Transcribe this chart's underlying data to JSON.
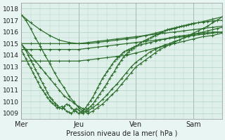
{
  "background_color": "#e8f5f2",
  "plot_bg_color": "#dff0ea",
  "grid_color": "#afd4c4",
  "line_color": "#2d6e2d",
  "xlabel": "Pression niveau de la mer( hPa )",
  "ylim": [
    1008.5,
    1018.5
  ],
  "yticks": [
    1009,
    1010,
    1011,
    1012,
    1013,
    1014,
    1015,
    1016,
    1017,
    1018
  ],
  "xlim": [
    0,
    168
  ],
  "day_positions": [
    0,
    48,
    96,
    144
  ],
  "day_labels": [
    "Mer",
    "Jeu",
    "Ven",
    "Sam"
  ],
  "series": {
    "flat_top": [
      [
        0,
        1017.5
      ],
      [
        8,
        1016.8
      ],
      [
        16,
        1016.2
      ],
      [
        24,
        1015.7
      ],
      [
        32,
        1015.3
      ],
      [
        40,
        1015.1
      ],
      [
        48,
        1015.0
      ],
      [
        56,
        1015.0
      ],
      [
        64,
        1015.1
      ],
      [
        72,
        1015.2
      ],
      [
        80,
        1015.3
      ],
      [
        88,
        1015.4
      ],
      [
        96,
        1015.5
      ],
      [
        104,
        1015.7
      ],
      [
        112,
        1015.9
      ],
      [
        120,
        1016.1
      ],
      [
        128,
        1016.3
      ],
      [
        136,
        1016.5
      ],
      [
        144,
        1016.7
      ],
      [
        152,
        1016.9
      ],
      [
        160,
        1017.1
      ],
      [
        168,
        1017.3
      ]
    ],
    "flat2": [
      [
        0,
        1015.0
      ],
      [
        8,
        1015.0
      ],
      [
        16,
        1015.0
      ],
      [
        24,
        1015.0
      ],
      [
        32,
        1015.0
      ],
      [
        40,
        1015.0
      ],
      [
        48,
        1015.0
      ],
      [
        56,
        1015.1
      ],
      [
        64,
        1015.2
      ],
      [
        72,
        1015.3
      ],
      [
        80,
        1015.4
      ],
      [
        88,
        1015.5
      ],
      [
        96,
        1015.6
      ],
      [
        104,
        1015.7
      ],
      [
        112,
        1015.8
      ],
      [
        120,
        1015.9
      ],
      [
        128,
        1016.0
      ],
      [
        136,
        1016.1
      ],
      [
        144,
        1016.2
      ],
      [
        152,
        1016.3
      ],
      [
        160,
        1016.4
      ],
      [
        168,
        1016.5
      ]
    ],
    "flat3": [
      [
        0,
        1014.5
      ],
      [
        8,
        1014.5
      ],
      [
        16,
        1014.5
      ],
      [
        24,
        1014.5
      ],
      [
        32,
        1014.5
      ],
      [
        40,
        1014.5
      ],
      [
        48,
        1014.5
      ],
      [
        56,
        1014.6
      ],
      [
        64,
        1014.7
      ],
      [
        72,
        1014.8
      ],
      [
        80,
        1014.9
      ],
      [
        88,
        1015.0
      ],
      [
        96,
        1015.1
      ],
      [
        104,
        1015.2
      ],
      [
        112,
        1015.3
      ],
      [
        120,
        1015.4
      ],
      [
        128,
        1015.5
      ],
      [
        136,
        1015.6
      ],
      [
        144,
        1015.7
      ],
      [
        152,
        1015.8
      ],
      [
        160,
        1015.9
      ],
      [
        168,
        1016.0
      ]
    ],
    "flat4": [
      [
        0,
        1013.5
      ],
      [
        8,
        1013.5
      ],
      [
        16,
        1013.5
      ],
      [
        24,
        1013.5
      ],
      [
        32,
        1013.5
      ],
      [
        40,
        1013.5
      ],
      [
        48,
        1013.5
      ],
      [
        56,
        1013.6
      ],
      [
        64,
        1013.7
      ],
      [
        72,
        1013.8
      ],
      [
        80,
        1013.9
      ],
      [
        88,
        1014.0
      ],
      [
        96,
        1014.2
      ],
      [
        104,
        1014.4
      ],
      [
        112,
        1014.6
      ],
      [
        120,
        1014.8
      ],
      [
        128,
        1015.0
      ],
      [
        136,
        1015.2
      ],
      [
        144,
        1015.4
      ],
      [
        152,
        1015.6
      ],
      [
        160,
        1015.7
      ],
      [
        168,
        1015.9
      ]
    ],
    "dip1": [
      [
        0,
        1017.5
      ],
      [
        4,
        1017.0
      ],
      [
        8,
        1016.3
      ],
      [
        12,
        1015.5
      ],
      [
        16,
        1014.8
      ],
      [
        20,
        1014.0
      ],
      [
        24,
        1013.3
      ],
      [
        28,
        1012.5
      ],
      [
        32,
        1011.8
      ],
      [
        36,
        1011.2
      ],
      [
        40,
        1010.5
      ],
      [
        44,
        1010.0
      ],
      [
        48,
        1009.5
      ],
      [
        52,
        1009.2
      ],
      [
        56,
        1009.0
      ],
      [
        60,
        1009.2
      ],
      [
        64,
        1009.5
      ],
      [
        68,
        1009.8
      ],
      [
        72,
        1010.2
      ],
      [
        76,
        1010.6
      ],
      [
        80,
        1011.0
      ],
      [
        84,
        1011.5
      ],
      [
        88,
        1012.0
      ],
      [
        92,
        1012.5
      ],
      [
        96,
        1013.0
      ],
      [
        100,
        1013.3
      ],
      [
        104,
        1013.6
      ],
      [
        108,
        1013.9
      ],
      [
        112,
        1014.2
      ],
      [
        116,
        1014.5
      ],
      [
        120,
        1014.7
      ],
      [
        124,
        1014.9
      ],
      [
        128,
        1015.1
      ],
      [
        132,
        1015.3
      ],
      [
        136,
        1015.5
      ],
      [
        140,
        1015.7
      ],
      [
        144,
        1015.9
      ],
      [
        148,
        1016.1
      ],
      [
        152,
        1016.3
      ],
      [
        156,
        1016.5
      ],
      [
        160,
        1016.8
      ],
      [
        164,
        1017.0
      ],
      [
        168,
        1017.3
      ]
    ],
    "dip2": [
      [
        0,
        1015.0
      ],
      [
        4,
        1014.5
      ],
      [
        8,
        1014.0
      ],
      [
        12,
        1013.5
      ],
      [
        16,
        1013.0
      ],
      [
        20,
        1012.5
      ],
      [
        24,
        1012.0
      ],
      [
        28,
        1011.5
      ],
      [
        32,
        1011.0
      ],
      [
        36,
        1010.5
      ],
      [
        40,
        1010.2
      ],
      [
        44,
        1009.9
      ],
      [
        48,
        1009.6
      ],
      [
        52,
        1009.4
      ],
      [
        56,
        1009.2
      ],
      [
        60,
        1009.5
      ],
      [
        64,
        1009.8
      ],
      [
        68,
        1010.2
      ],
      [
        72,
        1010.6
      ],
      [
        76,
        1011.1
      ],
      [
        80,
        1011.5
      ],
      [
        84,
        1012.0
      ],
      [
        88,
        1012.5
      ],
      [
        92,
        1013.0
      ],
      [
        96,
        1013.4
      ],
      [
        100,
        1013.7
      ],
      [
        104,
        1014.0
      ],
      [
        108,
        1014.3
      ],
      [
        112,
        1014.5
      ],
      [
        116,
        1014.7
      ],
      [
        120,
        1014.9
      ],
      [
        124,
        1015.0
      ],
      [
        128,
        1015.2
      ],
      [
        132,
        1015.3
      ],
      [
        136,
        1015.5
      ],
      [
        140,
        1015.6
      ],
      [
        144,
        1015.8
      ],
      [
        148,
        1015.9
      ],
      [
        152,
        1016.0
      ],
      [
        156,
        1016.1
      ],
      [
        160,
        1016.2
      ],
      [
        164,
        1016.3
      ],
      [
        168,
        1016.4
      ]
    ],
    "dip3_detailed": [
      [
        0,
        1015.0
      ],
      [
        2,
        1014.7
      ],
      [
        4,
        1014.4
      ],
      [
        6,
        1014.0
      ],
      [
        8,
        1013.6
      ],
      [
        10,
        1013.2
      ],
      [
        12,
        1012.8
      ],
      [
        14,
        1012.4
      ],
      [
        16,
        1012.0
      ],
      [
        18,
        1011.6
      ],
      [
        20,
        1011.2
      ],
      [
        22,
        1010.8
      ],
      [
        24,
        1010.4
      ],
      [
        26,
        1010.2
      ],
      [
        28,
        1009.9
      ],
      [
        30,
        1009.7
      ],
      [
        32,
        1009.5
      ],
      [
        34,
        1009.6
      ],
      [
        36,
        1009.4
      ],
      [
        38,
        1009.2
      ],
      [
        40,
        1009.1
      ],
      [
        42,
        1009.0
      ],
      [
        44,
        1009.2
      ],
      [
        46,
        1009.4
      ],
      [
        48,
        1009.3
      ],
      [
        50,
        1009.1
      ],
      [
        52,
        1009.0
      ],
      [
        54,
        1009.2
      ],
      [
        56,
        1009.4
      ],
      [
        58,
        1009.6
      ],
      [
        60,
        1009.8
      ],
      [
        62,
        1010.1
      ],
      [
        64,
        1010.4
      ],
      [
        66,
        1010.7
      ],
      [
        68,
        1011.0
      ],
      [
        70,
        1011.3
      ],
      [
        72,
        1011.6
      ],
      [
        74,
        1012.0
      ],
      [
        76,
        1012.3
      ],
      [
        78,
        1012.6
      ],
      [
        80,
        1013.0
      ],
      [
        82,
        1013.3
      ],
      [
        84,
        1013.6
      ],
      [
        86,
        1013.9
      ],
      [
        88,
        1014.1
      ],
      [
        90,
        1014.3
      ],
      [
        92,
        1014.5
      ],
      [
        94,
        1014.6
      ],
      [
        96,
        1014.8
      ],
      [
        98,
        1014.9
      ],
      [
        100,
        1015.1
      ],
      [
        102,
        1015.2
      ],
      [
        104,
        1015.3
      ],
      [
        106,
        1015.4
      ],
      [
        108,
        1015.5
      ],
      [
        110,
        1015.6
      ],
      [
        112,
        1015.7
      ],
      [
        114,
        1015.8
      ],
      [
        116,
        1015.9
      ],
      [
        118,
        1016.0
      ],
      [
        120,
        1016.1
      ],
      [
        122,
        1016.2
      ],
      [
        124,
        1016.25
      ],
      [
        126,
        1016.3
      ],
      [
        128,
        1016.35
      ],
      [
        130,
        1016.4
      ],
      [
        132,
        1016.45
      ],
      [
        134,
        1016.5
      ],
      [
        136,
        1016.55
      ],
      [
        138,
        1016.6
      ],
      [
        140,
        1016.65
      ],
      [
        142,
        1016.7
      ],
      [
        144,
        1016.75
      ],
      [
        148,
        1016.8
      ],
      [
        152,
        1016.85
      ],
      [
        156,
        1016.9
      ],
      [
        160,
        1016.95
      ],
      [
        164,
        1017.0
      ],
      [
        168,
        1017.0
      ]
    ],
    "dip4_zigzag": [
      [
        0,
        1014.5
      ],
      [
        2,
        1014.1
      ],
      [
        4,
        1013.7
      ],
      [
        6,
        1013.3
      ],
      [
        8,
        1012.9
      ],
      [
        10,
        1012.5
      ],
      [
        12,
        1012.1
      ],
      [
        14,
        1011.7
      ],
      [
        16,
        1011.3
      ],
      [
        18,
        1011.0
      ],
      [
        20,
        1010.7
      ],
      [
        22,
        1010.4
      ],
      [
        24,
        1010.1
      ],
      [
        26,
        1009.9
      ],
      [
        28,
        1009.7
      ],
      [
        30,
        1009.5
      ],
      [
        32,
        1009.5
      ],
      [
        34,
        1009.4
      ],
      [
        36,
        1009.6
      ],
      [
        38,
        1009.8
      ],
      [
        40,
        1009.7
      ],
      [
        42,
        1009.5
      ],
      [
        44,
        1009.3
      ],
      [
        46,
        1009.2
      ],
      [
        48,
        1009.0
      ],
      [
        50,
        1009.1
      ],
      [
        52,
        1009.3
      ],
      [
        54,
        1009.5
      ],
      [
        56,
        1009.8
      ],
      [
        58,
        1010.1
      ],
      [
        60,
        1010.4
      ],
      [
        62,
        1010.8
      ],
      [
        64,
        1011.2
      ],
      [
        66,
        1011.6
      ],
      [
        68,
        1012.0
      ],
      [
        70,
        1012.3
      ],
      [
        72,
        1012.6
      ],
      [
        74,
        1012.9
      ],
      [
        76,
        1013.2
      ],
      [
        78,
        1013.5
      ],
      [
        80,
        1013.7
      ],
      [
        82,
        1013.9
      ],
      [
        84,
        1014.1
      ],
      [
        86,
        1014.3
      ],
      [
        88,
        1014.4
      ],
      [
        90,
        1014.5
      ],
      [
        92,
        1014.6
      ],
      [
        94,
        1014.7
      ],
      [
        96,
        1014.8
      ],
      [
        100,
        1014.9
      ],
      [
        104,
        1015.0
      ],
      [
        108,
        1015.1
      ],
      [
        112,
        1015.2
      ],
      [
        116,
        1015.3
      ],
      [
        120,
        1015.4
      ],
      [
        124,
        1015.5
      ],
      [
        128,
        1015.6
      ],
      [
        132,
        1015.65
      ],
      [
        136,
        1015.7
      ],
      [
        140,
        1015.75
      ],
      [
        144,
        1015.8
      ],
      [
        148,
        1015.85
      ],
      [
        152,
        1015.9
      ],
      [
        156,
        1015.95
      ],
      [
        160,
        1016.0
      ],
      [
        164,
        1016.0
      ],
      [
        168,
        1016.0
      ]
    ]
  }
}
